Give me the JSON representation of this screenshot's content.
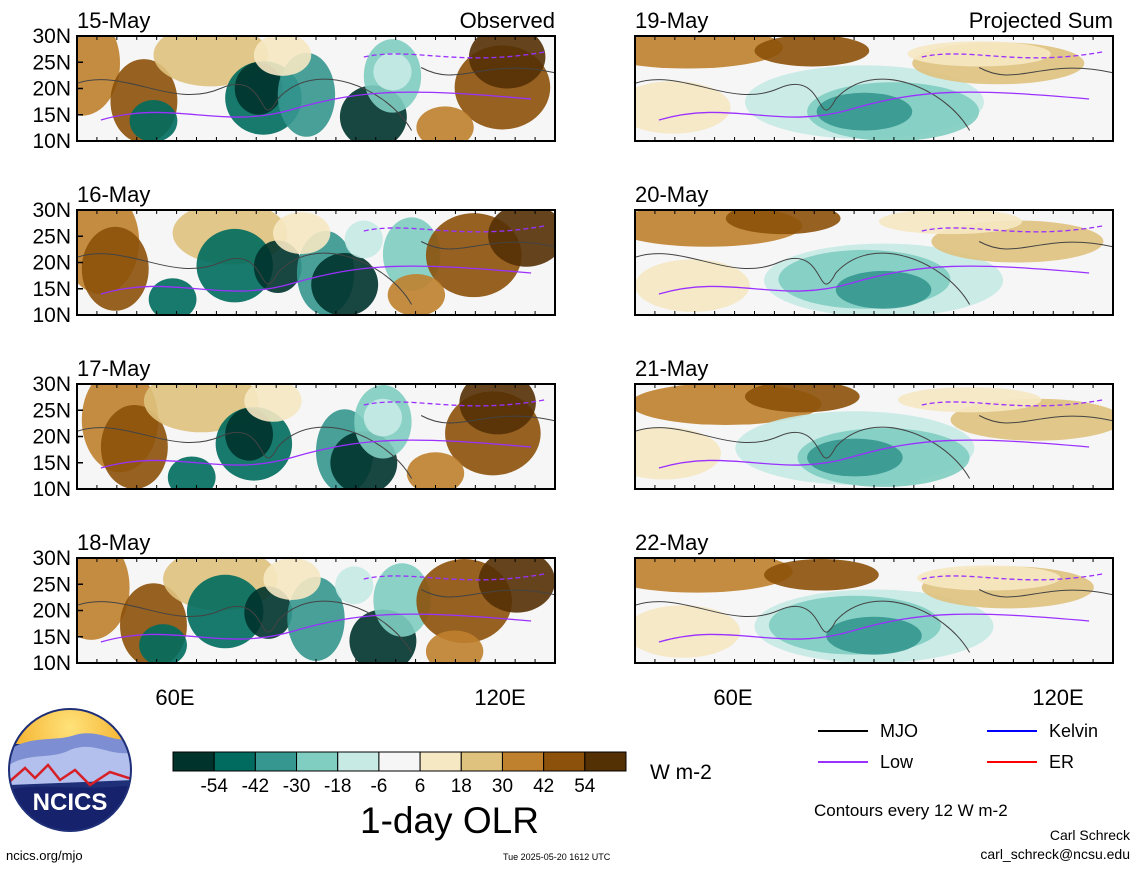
{
  "chart_data": {
    "type": "heatmap",
    "title": "1-day OLR",
    "units": "W m-2",
    "contour_note": "Contours every 12 W m-2",
    "columns": [
      {
        "label": "Observed",
        "panels": [
          "15-May",
          "16-May",
          "17-May",
          "18-May"
        ]
      },
      {
        "label": "Projected Sum",
        "panels": [
          "19-May",
          "20-May",
          "21-May",
          "22-May"
        ]
      }
    ],
    "x_ticks": [
      "60E",
      "120E"
    ],
    "y_ticks": [
      "30N",
      "25N",
      "20N",
      "15N",
      "10N"
    ],
    "lat_range": [
      10,
      30
    ],
    "lon_ticks_values": [
      60,
      120
    ],
    "colorbar": {
      "labels": [
        "-54",
        "-42",
        "-30",
        "-18",
        "-6",
        "6",
        "18",
        "30",
        "42",
        "54"
      ],
      "colors": [
        "#00332c",
        "#006b5e",
        "#35978f",
        "#80cdc1",
        "#c7eae5",
        "#f6f6f6",
        "#f6e8c3",
        "#dfc27d",
        "#bf812d",
        "#8c510a",
        "#543005"
      ]
    },
    "legend": [
      {
        "name": "MJO",
        "color": "#000000"
      },
      {
        "name": "Kelvin",
        "color": "#0000ff"
      },
      {
        "name": "Low",
        "color": "#9b30ff"
      },
      {
        "name": "ER",
        "color": "#ff0000"
      }
    ]
  },
  "logo_text": "NCICS",
  "footer": {
    "site": "ncics.org/mjo",
    "timestamp": "Tue 2025-05-20 1612 UTC",
    "author": "Carl Schreck",
    "email": "carl_schreck@ncsu.edu"
  }
}
